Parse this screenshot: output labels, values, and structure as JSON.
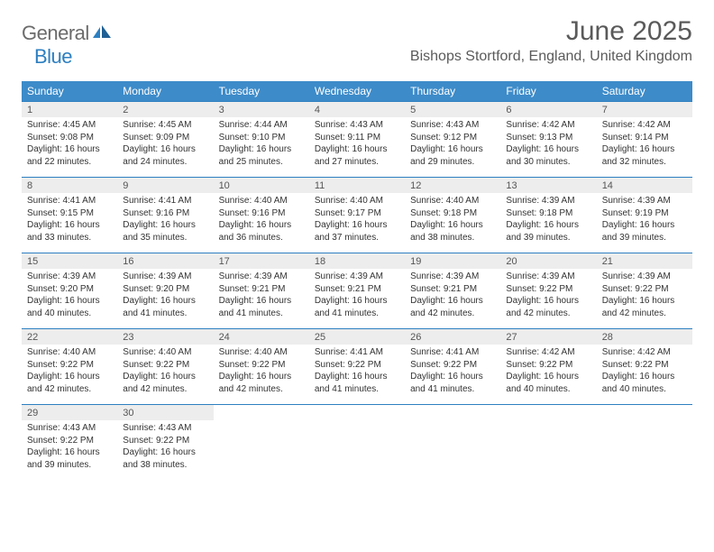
{
  "logo": {
    "general": "General",
    "blue": "Blue"
  },
  "title": "June 2025",
  "location": "Bishops Stortford, England, United Kingdom",
  "colors": {
    "header_bg": "#3d8bc9",
    "header_text": "#ffffff",
    "daynum_bg": "#ededed",
    "rule": "#2d7fc1",
    "logo_gray": "#6b6b6b",
    "logo_blue": "#2d7fc1"
  },
  "day_headers": [
    "Sunday",
    "Monday",
    "Tuesday",
    "Wednesday",
    "Thursday",
    "Friday",
    "Saturday"
  ],
  "weeks": [
    [
      {
        "num": "1",
        "sunrise": "Sunrise: 4:45 AM",
        "sunset": "Sunset: 9:08 PM",
        "day1": "Daylight: 16 hours",
        "day2": "and 22 minutes."
      },
      {
        "num": "2",
        "sunrise": "Sunrise: 4:45 AM",
        "sunset": "Sunset: 9:09 PM",
        "day1": "Daylight: 16 hours",
        "day2": "and 24 minutes."
      },
      {
        "num": "3",
        "sunrise": "Sunrise: 4:44 AM",
        "sunset": "Sunset: 9:10 PM",
        "day1": "Daylight: 16 hours",
        "day2": "and 25 minutes."
      },
      {
        "num": "4",
        "sunrise": "Sunrise: 4:43 AM",
        "sunset": "Sunset: 9:11 PM",
        "day1": "Daylight: 16 hours",
        "day2": "and 27 minutes."
      },
      {
        "num": "5",
        "sunrise": "Sunrise: 4:43 AM",
        "sunset": "Sunset: 9:12 PM",
        "day1": "Daylight: 16 hours",
        "day2": "and 29 minutes."
      },
      {
        "num": "6",
        "sunrise": "Sunrise: 4:42 AM",
        "sunset": "Sunset: 9:13 PM",
        "day1": "Daylight: 16 hours",
        "day2": "and 30 minutes."
      },
      {
        "num": "7",
        "sunrise": "Sunrise: 4:42 AM",
        "sunset": "Sunset: 9:14 PM",
        "day1": "Daylight: 16 hours",
        "day2": "and 32 minutes."
      }
    ],
    [
      {
        "num": "8",
        "sunrise": "Sunrise: 4:41 AM",
        "sunset": "Sunset: 9:15 PM",
        "day1": "Daylight: 16 hours",
        "day2": "and 33 minutes."
      },
      {
        "num": "9",
        "sunrise": "Sunrise: 4:41 AM",
        "sunset": "Sunset: 9:16 PM",
        "day1": "Daylight: 16 hours",
        "day2": "and 35 minutes."
      },
      {
        "num": "10",
        "sunrise": "Sunrise: 4:40 AM",
        "sunset": "Sunset: 9:16 PM",
        "day1": "Daylight: 16 hours",
        "day2": "and 36 minutes."
      },
      {
        "num": "11",
        "sunrise": "Sunrise: 4:40 AM",
        "sunset": "Sunset: 9:17 PM",
        "day1": "Daylight: 16 hours",
        "day2": "and 37 minutes."
      },
      {
        "num": "12",
        "sunrise": "Sunrise: 4:40 AM",
        "sunset": "Sunset: 9:18 PM",
        "day1": "Daylight: 16 hours",
        "day2": "and 38 minutes."
      },
      {
        "num": "13",
        "sunrise": "Sunrise: 4:39 AM",
        "sunset": "Sunset: 9:18 PM",
        "day1": "Daylight: 16 hours",
        "day2": "and 39 minutes."
      },
      {
        "num": "14",
        "sunrise": "Sunrise: 4:39 AM",
        "sunset": "Sunset: 9:19 PM",
        "day1": "Daylight: 16 hours",
        "day2": "and 39 minutes."
      }
    ],
    [
      {
        "num": "15",
        "sunrise": "Sunrise: 4:39 AM",
        "sunset": "Sunset: 9:20 PM",
        "day1": "Daylight: 16 hours",
        "day2": "and 40 minutes."
      },
      {
        "num": "16",
        "sunrise": "Sunrise: 4:39 AM",
        "sunset": "Sunset: 9:20 PM",
        "day1": "Daylight: 16 hours",
        "day2": "and 41 minutes."
      },
      {
        "num": "17",
        "sunrise": "Sunrise: 4:39 AM",
        "sunset": "Sunset: 9:21 PM",
        "day1": "Daylight: 16 hours",
        "day2": "and 41 minutes."
      },
      {
        "num": "18",
        "sunrise": "Sunrise: 4:39 AM",
        "sunset": "Sunset: 9:21 PM",
        "day1": "Daylight: 16 hours",
        "day2": "and 41 minutes."
      },
      {
        "num": "19",
        "sunrise": "Sunrise: 4:39 AM",
        "sunset": "Sunset: 9:21 PM",
        "day1": "Daylight: 16 hours",
        "day2": "and 42 minutes."
      },
      {
        "num": "20",
        "sunrise": "Sunrise: 4:39 AM",
        "sunset": "Sunset: 9:22 PM",
        "day1": "Daylight: 16 hours",
        "day2": "and 42 minutes."
      },
      {
        "num": "21",
        "sunrise": "Sunrise: 4:39 AM",
        "sunset": "Sunset: 9:22 PM",
        "day1": "Daylight: 16 hours",
        "day2": "and 42 minutes."
      }
    ],
    [
      {
        "num": "22",
        "sunrise": "Sunrise: 4:40 AM",
        "sunset": "Sunset: 9:22 PM",
        "day1": "Daylight: 16 hours",
        "day2": "and 42 minutes."
      },
      {
        "num": "23",
        "sunrise": "Sunrise: 4:40 AM",
        "sunset": "Sunset: 9:22 PM",
        "day1": "Daylight: 16 hours",
        "day2": "and 42 minutes."
      },
      {
        "num": "24",
        "sunrise": "Sunrise: 4:40 AM",
        "sunset": "Sunset: 9:22 PM",
        "day1": "Daylight: 16 hours",
        "day2": "and 42 minutes."
      },
      {
        "num": "25",
        "sunrise": "Sunrise: 4:41 AM",
        "sunset": "Sunset: 9:22 PM",
        "day1": "Daylight: 16 hours",
        "day2": "and 41 minutes."
      },
      {
        "num": "26",
        "sunrise": "Sunrise: 4:41 AM",
        "sunset": "Sunset: 9:22 PM",
        "day1": "Daylight: 16 hours",
        "day2": "and 41 minutes."
      },
      {
        "num": "27",
        "sunrise": "Sunrise: 4:42 AM",
        "sunset": "Sunset: 9:22 PM",
        "day1": "Daylight: 16 hours",
        "day2": "and 40 minutes."
      },
      {
        "num": "28",
        "sunrise": "Sunrise: 4:42 AM",
        "sunset": "Sunset: 9:22 PM",
        "day1": "Daylight: 16 hours",
        "day2": "and 40 minutes."
      }
    ],
    [
      {
        "num": "29",
        "sunrise": "Sunrise: 4:43 AM",
        "sunset": "Sunset: 9:22 PM",
        "day1": "Daylight: 16 hours",
        "day2": "and 39 minutes."
      },
      {
        "num": "30",
        "sunrise": "Sunrise: 4:43 AM",
        "sunset": "Sunset: 9:22 PM",
        "day1": "Daylight: 16 hours",
        "day2": "and 38 minutes."
      },
      null,
      null,
      null,
      null,
      null
    ]
  ]
}
